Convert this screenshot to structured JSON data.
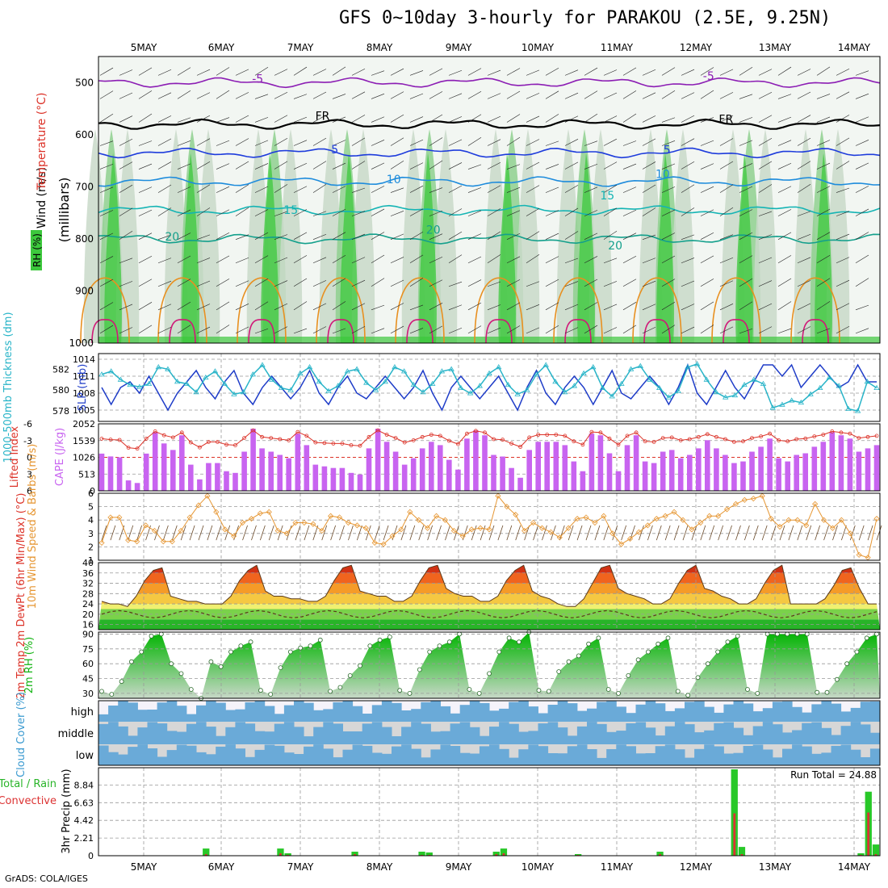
{
  "header": {
    "title": "GFS 0~10day 3-hourly for PARAKOU (2.5E, 9.25N)"
  },
  "footer": {
    "credit": "GrADS: COLA/IGES"
  },
  "colors": {
    "rh_green": "#3cc83c",
    "temp_contour_purple": "#8c1eb4",
    "temp_contour_blue": "#1e3cdc",
    "temp_contour_teal": "#14b4b4",
    "slp_line": "#1e3cc8",
    "thickness_line": "#28b4c8",
    "cape_bar": "#c864f0",
    "lifted_index": "#dc3228",
    "wind_speed": "#e69632",
    "rh2m_fill": "#14b414",
    "cloud_blue": "#6aaad8",
    "cloud_gray": "#d7d7d7",
    "cloud_white": "#f5f3fa",
    "precip_total": "#28c828",
    "precip_conv": "#dc3232"
  },
  "chart_data": [
    {
      "id": "upper_air",
      "type": "heatmap",
      "axis_labels": [
        "Wind (m/s)",
        "Temperature (°C)",
        "RH (%)",
        "(millibars)"
      ],
      "x_labels_top": [
        "5MAY",
        "6MAY",
        "7MAY",
        "8MAY",
        "9MAY",
        "10MAY",
        "11MAY",
        "12MAY",
        "13MAY",
        "14MAY"
      ],
      "y_ticks": [
        500,
        600,
        700,
        800,
        900,
        1000
      ],
      "ylim": [
        450,
        1000
      ],
      "contour_labels": [
        {
          "text": "-5",
          "x": 1.9,
          "p": 500,
          "color": "#8c1eb4"
        },
        {
          "text": "-5",
          "x": 7.6,
          "p": 495,
          "color": "#8c1eb4"
        },
        {
          "text": "FR",
          "x": 2.7,
          "p": 572,
          "color": "#000000"
        },
        {
          "text": "FR",
          "x": 7.8,
          "p": 578,
          "color": "#000000"
        },
        {
          "text": "5",
          "x": 2.9,
          "p": 636,
          "color": "#1e3cdc"
        },
        {
          "text": "5",
          "x": 7.1,
          "p": 637,
          "color": "#1e3cdc"
        },
        {
          "text": "10",
          "x": 3.6,
          "p": 693,
          "color": "#1e8cdc"
        },
        {
          "text": "10",
          "x": 7.0,
          "p": 683,
          "color": "#1e8cdc"
        },
        {
          "text": "15",
          "x": 2.3,
          "p": 752,
          "color": "#14b4b4"
        },
        {
          "text": "15",
          "x": 6.3,
          "p": 724,
          "color": "#14b4b4"
        },
        {
          "text": "20",
          "x": 0.8,
          "p": 803,
          "color": "#14a08c"
        },
        {
          "text": "20",
          "x": 4.1,
          "p": 790,
          "color": "#14a08c"
        },
        {
          "text": "20",
          "x": 6.4,
          "p": 820,
          "color": "#14a08c"
        }
      ],
      "isotherms": [
        {
          "name": "-5",
          "base_p": 500,
          "color": "#8c1eb4"
        },
        {
          "name": "FR",
          "base_p": 580,
          "color": "#000000"
        },
        {
          "name": "5",
          "base_p": 635,
          "color": "#1e3cdc"
        },
        {
          "name": "10",
          "base_p": 690,
          "color": "#1e8cdc"
        },
        {
          "name": "15",
          "base_p": 745,
          "color": "#14b4b4"
        },
        {
          "name": "20",
          "base_p": 800,
          "color": "#14a08c"
        }
      ]
    },
    {
      "id": "slp_thickness",
      "type": "line",
      "left_label": "1000-500mb Thickness (dm)",
      "right_label": "SLP (mb)",
      "left_ticks": [
        578,
        580,
        582
      ],
      "right_ticks": [
        1005,
        1008,
        1011,
        1014
      ],
      "series": [
        {
          "name": "SLP (mb)",
          "values": [
            1009,
            1006,
            1009,
            1010,
            1008,
            1011,
            1008,
            1005,
            1008,
            1010,
            1012,
            1009,
            1007,
            1010,
            1012,
            1008,
            1006,
            1009,
            1011,
            1009,
            1007,
            1009,
            1012,
            1008,
            1006,
            1009,
            1011,
            1008,
            1007,
            1009,
            1011,
            1009,
            1007,
            1009,
            1012,
            1008,
            1005,
            1009,
            1011,
            1009,
            1007,
            1009,
            1011,
            1008,
            1005,
            1009,
            1012,
            1008,
            1006,
            1009,
            1011,
            1009,
            1006,
            1009,
            1012,
            1008,
            1007,
            1009,
            1011,
            1009,
            1006,
            1009,
            1013,
            1008,
            1006,
            1009,
            1012,
            1009,
            1007,
            1010,
            1013,
            1013,
            1011,
            1013,
            1009,
            1011,
            1013,
            1011,
            1009,
            1010,
            1013,
            1010,
            1010
          ]
        },
        {
          "name": "Thickness (dm)",
          "values": [
            581.5,
            581.8,
            581,
            580.5,
            580.3,
            580.6,
            582.2,
            582,
            580.8,
            580.6,
            579.8,
            581.2,
            581.8,
            580.6,
            579.6,
            579.8,
            581.5,
            582.4,
            581,
            580.2,
            580,
            581.6,
            582.2,
            580.8,
            579.9,
            580.4,
            581.8,
            582,
            580.7,
            580,
            580.8,
            582.2,
            581.8,
            580.5,
            579.8,
            580.6,
            581.8,
            582,
            580.2,
            579.7,
            580.4,
            581.6,
            582.2,
            580.5,
            579.6,
            580,
            581.5,
            582.4,
            580.8,
            579.8,
            580.4,
            581.6,
            582.2,
            580.2,
            579.4,
            580.6,
            582,
            582.3,
            581,
            580.2,
            579.3,
            579.9,
            582.2,
            582.5,
            581,
            579.8,
            579.3,
            579.5,
            580.5,
            581,
            580.6,
            578.3,
            578.6,
            579,
            578.8,
            579.6,
            580.2,
            581.2,
            580.4,
            578.2,
            578,
            580.8,
            580.2
          ]
        }
      ]
    },
    {
      "id": "cape_li",
      "type": "bar",
      "left_label": "Lifted Index",
      "right_label": "CAPE (J/kg)",
      "left_ticks": [
        -6,
        -3,
        0,
        3,
        6
      ],
      "right_ticks": [
        0,
        513,
        1026,
        1539,
        2052
      ],
      "cape_values": [
        1140,
        1053,
        1026,
        320,
        240,
        1140,
        1800,
        1450,
        1250,
        1700,
        800,
        350,
        850,
        850,
        600,
        550,
        1200,
        1900,
        1300,
        1200,
        1100,
        1000,
        1750,
        1400,
        800,
        750,
        700,
        700,
        550,
        500,
        1300,
        1900,
        1500,
        1200,
        800,
        1000,
        1300,
        1500,
        1400,
        950,
        650,
        1600,
        1850,
        1700,
        1100,
        1050,
        700,
        400,
        1250,
        1500,
        1500,
        1500,
        1400,
        900,
        600,
        1750,
        1700,
        1150,
        600,
        1400,
        1700,
        900,
        850,
        1200,
        1250,
        1000,
        1100,
        1300,
        1550,
        1300,
        1100,
        850,
        900,
        1200,
        1350,
        1600,
        1000,
        900,
        1100,
        1150,
        1350,
        1500,
        1800,
        1700,
        1600,
        1200,
        1300,
        1400
      ]
    },
    {
      "id": "wind10m",
      "type": "line",
      "label": "10m Wind Speed & Barbs (m/s)",
      "y_ticks": [
        1,
        2,
        3,
        4,
        5,
        6
      ],
      "ylim": [
        1,
        6
      ],
      "values": [
        2.3,
        4.2,
        4.2,
        2.5,
        2.4,
        3.6,
        3.2,
        2.4,
        2.4,
        3.2,
        4.2,
        5.1,
        5.8,
        4.6,
        3.3,
        2.8,
        3.8,
        4.1,
        4.5,
        4.6,
        3.2,
        3.0,
        3.8,
        3.8,
        3.7,
        3.2,
        4.3,
        4.2,
        3.8,
        3.6,
        3.4,
        2.3,
        2.2,
        2.8,
        3.3,
        4.6,
        4.0,
        3.4,
        4.3,
        4.0,
        3.2,
        2.8,
        3.3,
        3.4,
        3.3,
        5.8,
        5.0,
        4.4,
        3.2,
        3.8,
        3.4,
        3.1,
        2.7,
        3.4,
        4.1,
        4.2,
        3.8,
        4.3,
        3.0,
        2.2,
        2.6,
        3.1,
        3.6,
        4.1,
        4.3,
        4.6,
        4.0,
        3.3,
        3.8,
        4.3,
        4.3,
        4.8,
        5.2,
        5.5,
        5.6,
        5.8,
        4.1,
        3.5,
        4.0,
        4.0,
        3.6,
        5.2,
        4.0,
        3.4,
        4.0,
        3.0,
        1.4,
        1.2,
        4.1
      ]
    },
    {
      "id": "temp2m",
      "type": "area",
      "label": "2m Temp 2m DewPt (6hr Min/Max) (°C)",
      "y_ticks": [
        16,
        20,
        24,
        28,
        32,
        36,
        40
      ],
      "ylim": [
        14,
        40
      ],
      "temp": [
        25,
        24,
        24,
        23,
        27,
        33,
        37,
        38,
        27,
        26,
        25,
        25,
        24,
        24,
        24,
        27,
        33,
        37,
        39,
        29,
        27,
        27,
        26,
        26,
        25,
        25,
        27,
        33,
        38,
        39,
        29,
        28,
        27,
        27,
        25,
        25,
        27,
        33,
        38,
        39,
        30,
        28,
        27,
        27,
        25,
        25,
        27,
        33,
        37,
        39,
        29,
        27,
        26,
        24,
        23,
        23,
        26,
        32,
        38,
        39,
        30,
        28,
        27,
        26,
        24,
        24,
        26,
        32,
        37,
        39,
        30,
        29,
        27,
        26,
        24,
        24,
        26,
        32,
        37,
        39,
        24,
        24,
        24,
        24,
        26,
        31,
        37,
        38,
        30,
        24,
        24
      ]
    },
    {
      "id": "rh2m",
      "type": "area",
      "label": "2m RH (%)",
      "y_ticks": [
        30,
        45,
        60,
        75,
        90
      ],
      "ylim": [
        25,
        92
      ],
      "values": [
        32,
        29,
        42,
        62,
        72,
        88,
        90,
        60,
        50,
        34,
        25,
        62,
        57,
        72,
        78,
        82,
        33,
        29,
        56,
        72,
        76,
        78,
        84,
        32,
        36,
        48,
        58,
        78,
        84,
        87,
        33,
        30,
        54,
        72,
        78,
        82,
        90,
        34,
        30,
        50,
        72,
        86,
        82,
        92,
        33,
        32,
        52,
        62,
        68,
        80,
        86,
        34,
        30,
        48,
        64,
        72,
        80,
        86,
        32,
        28,
        46,
        60,
        72,
        82,
        88,
        34,
        30,
        90,
        90,
        90,
        90,
        90,
        31,
        31,
        44,
        60,
        72,
        86,
        90
      ]
    },
    {
      "id": "cloud",
      "type": "heatmap",
      "label": "Cloud Cover (%)",
      "rows": [
        "high",
        "middle",
        "low"
      ]
    },
    {
      "id": "precip",
      "type": "bar",
      "label": "3hr Precip (mm)",
      "legend": [
        "Total / Rain",
        "Convective"
      ],
      "y_ticks": [
        0,
        2.21,
        4.42,
        6.63,
        8.84
      ],
      "ylim": [
        0,
        11
      ],
      "annotation": "Run Total = 24.88",
      "x_labels_bottom": [
        "5MAY",
        "6MAY",
        "7MAY",
        "8MAY",
        "9MAY",
        "10MAY",
        "11MAY",
        "12MAY",
        "13MAY",
        "14MAY"
      ],
      "total": [
        0,
        0,
        0,
        0,
        0,
        0,
        0,
        0,
        0,
        0,
        0,
        0,
        0,
        0,
        0.9,
        0,
        0,
        0,
        0,
        0,
        0,
        0,
        0,
        0,
        0.9,
        0.3,
        0,
        0,
        0,
        0,
        0,
        0,
        0,
        0,
        0.5,
        0,
        0,
        0,
        0,
        0,
        0,
        0,
        0,
        0.5,
        0.4,
        0,
        0,
        0,
        0,
        0,
        0,
        0,
        0,
        0.5,
        0.9,
        0,
        0,
        0,
        0,
        0,
        0,
        0,
        0,
        0,
        0.2,
        0,
        0,
        0,
        0,
        0,
        0,
        0,
        0,
        0,
        0,
        0.5,
        0,
        0,
        0,
        0,
        0,
        0,
        0,
        0,
        0,
        10.8,
        1.1,
        0,
        0,
        0,
        0,
        0,
        0,
        0,
        0,
        0,
        0,
        0,
        0,
        0,
        0,
        0,
        0.3,
        8.0,
        1.4
      ],
      "convective": [
        0,
        0,
        0,
        0,
        0,
        0,
        0,
        0,
        0,
        0,
        0,
        0,
        0,
        0,
        0.2,
        0,
        0,
        0,
        0,
        0,
        0,
        0,
        0,
        0,
        0.3,
        0.1,
        0,
        0,
        0,
        0,
        0,
        0,
        0,
        0,
        0.2,
        0,
        0,
        0,
        0,
        0,
        0,
        0,
        0,
        0.1,
        0.1,
        0,
        0,
        0,
        0,
        0,
        0,
        0,
        0,
        0.2,
        0.3,
        0,
        0,
        0,
        0,
        0,
        0,
        0,
        0,
        0,
        0.1,
        0,
        0,
        0,
        0,
        0,
        0,
        0,
        0,
        0,
        0,
        0.2,
        0,
        0,
        0,
        0,
        0,
        0,
        0,
        0,
        0,
        5.3,
        0.2,
        0,
        0,
        0,
        0,
        0,
        0,
        0,
        0,
        0,
        0,
        0,
        0,
        0,
        0,
        0,
        0.1,
        5.4,
        0.2
      ]
    }
  ]
}
